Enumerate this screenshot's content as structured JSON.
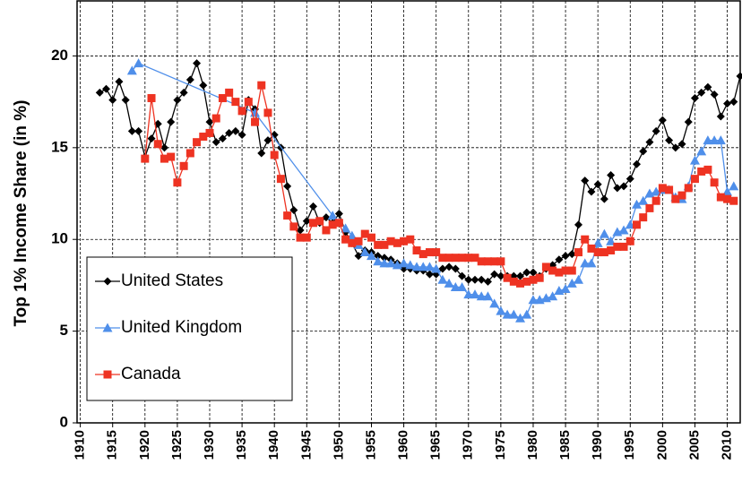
{
  "chart_data": {
    "type": "line",
    "ylabel": "Top 1% Income Share (in %)",
    "xlim": [
      1909.5,
      2012
    ],
    "ylim": [
      0,
      23
    ],
    "xticks": [
      1910,
      1915,
      1920,
      1925,
      1930,
      1935,
      1940,
      1945,
      1950,
      1955,
      1960,
      1965,
      1970,
      1975,
      1980,
      1985,
      1990,
      1995,
      2000,
      2005,
      2010
    ],
    "yticks": [
      0,
      5,
      10,
      15,
      20
    ],
    "grid": true,
    "legend": "lower left",
    "series": [
      {
        "name": "United States",
        "color": "#000000",
        "marker": "diamond",
        "x": [
          1913,
          1914,
          1915,
          1916,
          1917,
          1918,
          1919,
          1920,
          1921,
          1922,
          1923,
          1924,
          1925,
          1926,
          1927,
          1928,
          1929,
          1930,
          1931,
          1932,
          1933,
          1934,
          1935,
          1936,
          1937,
          1938,
          1939,
          1940,
          1941,
          1942,
          1943,
          1944,
          1945,
          1946,
          1947,
          1948,
          1949,
          1950,
          1951,
          1952,
          1953,
          1954,
          1955,
          1956,
          1957,
          1958,
          1959,
          1960,
          1961,
          1962,
          1963,
          1964,
          1965,
          1966,
          1967,
          1968,
          1969,
          1970,
          1971,
          1972,
          1973,
          1974,
          1975,
          1976,
          1977,
          1978,
          1979,
          1980,
          1981,
          1982,
          1983,
          1984,
          1985,
          1986,
          1987,
          1988,
          1989,
          1990,
          1991,
          1992,
          1993,
          1994,
          1995,
          1996,
          1997,
          1998,
          1999,
          2000,
          2001,
          2002,
          2003,
          2004,
          2005,
          2006,
          2007,
          2008,
          2009,
          2010,
          2011,
          2012
        ],
        "values": [
          18.0,
          18.2,
          17.6,
          18.6,
          17.6,
          15.9,
          15.9,
          14.5,
          15.5,
          16.3,
          15.0,
          16.4,
          17.6,
          18.0,
          18.7,
          19.6,
          18.4,
          16.4,
          15.3,
          15.5,
          15.8,
          15.9,
          15.7,
          17.6,
          17.1,
          14.7,
          15.4,
          15.7,
          15.0,
          12.9,
          11.6,
          10.5,
          11.0,
          11.8,
          10.9,
          11.2,
          10.9,
          11.4,
          10.4,
          9.8,
          9.1,
          9.4,
          9.3,
          9.1,
          9.0,
          8.9,
          8.7,
          8.4,
          8.4,
          8.3,
          8.3,
          8.1,
          8.1,
          8.4,
          8.5,
          8.4,
          8.0,
          7.8,
          7.8,
          7.8,
          7.7,
          8.1,
          8.0,
          8.0,
          8.0,
          8.0,
          8.2,
          8.2,
          8.0,
          8.4,
          8.6,
          8.9,
          9.1,
          9.2,
          10.8,
          13.2,
          12.6,
          13.0,
          12.2,
          13.5,
          12.8,
          12.9,
          13.3,
          14.1,
          14.8,
          15.3,
          15.9,
          16.5,
          15.4,
          15.0,
          15.2,
          16.4,
          17.7,
          18.0,
          18.3,
          17.9,
          16.7,
          17.4,
          17.5,
          18.9
        ]
      },
      {
        "name": "United Kingdom",
        "color": "#4f8fea",
        "marker": "triangle",
        "x": [
          1918,
          1919,
          1937,
          1949,
          1951,
          1952,
          1953,
          1954,
          1955,
          1956,
          1957,
          1958,
          1959,
          1960,
          1961,
          1962,
          1963,
          1964,
          1965,
          1966,
          1967,
          1968,
          1969,
          1970,
          1971,
          1972,
          1973,
          1974,
          1975,
          1976,
          1977,
          1978,
          1979,
          1980,
          1981,
          1982,
          1983,
          1984,
          1985,
          1986,
          1987,
          1988,
          1989,
          1990,
          1991,
          1992,
          1993,
          1994,
          1995,
          1996,
          1997,
          1998,
          1999,
          2000,
          2001,
          2002,
          2003,
          2004,
          2005,
          2006,
          2007,
          2008,
          2009,
          2010,
          2011
        ],
        "values": [
          19.2,
          19.6,
          16.9,
          11.3,
          10.6,
          10.2,
          9.7,
          9.3,
          9.1,
          8.8,
          8.7,
          8.7,
          8.6,
          8.7,
          8.6,
          8.5,
          8.5,
          8.5,
          8.4,
          7.8,
          7.6,
          7.4,
          7.4,
          7.0,
          7.0,
          6.9,
          6.9,
          6.5,
          6.1,
          5.9,
          5.9,
          5.7,
          5.9,
          6.7,
          6.7,
          6.8,
          6.9,
          7.2,
          7.3,
          7.6,
          7.8,
          8.7,
          8.7,
          9.8,
          10.3,
          9.9,
          10.4,
          10.5,
          10.8,
          11.9,
          12.1,
          12.5,
          12.6,
          12.7,
          12.7,
          12.3,
          12.2,
          12.9,
          14.3,
          14.8,
          15.4,
          15.4,
          15.4,
          12.6,
          12.9
        ]
      },
      {
        "name": "Canada",
        "color": "#ee3322",
        "marker": "square",
        "x": [
          1920,
          1921,
          1922,
          1923,
          1924,
          1925,
          1926,
          1927,
          1928,
          1929,
          1930,
          1931,
          1932,
          1933,
          1934,
          1935,
          1936,
          1937,
          1938,
          1939,
          1940,
          1941,
          1942,
          1943,
          1944,
          1945,
          1946,
          1947,
          1948,
          1949,
          1950,
          1951,
          1952,
          1953,
          1954,
          1955,
          1956,
          1957,
          1958,
          1959,
          1960,
          1961,
          1962,
          1963,
          1964,
          1965,
          1966,
          1967,
          1968,
          1969,
          1970,
          1971,
          1972,
          1973,
          1974,
          1975,
          1976,
          1977,
          1978,
          1979,
          1980,
          1981,
          1982,
          1983,
          1984,
          1985,
          1986,
          1987,
          1988,
          1989,
          1990,
          1991,
          1992,
          1993,
          1994,
          1995,
          1996,
          1997,
          1998,
          1999,
          2000,
          2001,
          2002,
          2003,
          2004,
          2005,
          2006,
          2007,
          2008,
          2009,
          2010,
          2011
        ],
        "values": [
          14.4,
          17.7,
          15.2,
          14.4,
          14.5,
          13.1,
          14.0,
          14.7,
          15.3,
          15.6,
          15.8,
          16.6,
          17.7,
          18.0,
          17.5,
          17.0,
          17.5,
          16.4,
          18.4,
          16.9,
          14.6,
          13.3,
          11.3,
          10.7,
          10.1,
          10.1,
          10.9,
          11.0,
          10.5,
          10.8,
          10.9,
          10.0,
          9.8,
          9.9,
          10.3,
          10.1,
          9.7,
          9.7,
          9.9,
          9.8,
          9.9,
          10.0,
          9.4,
          9.2,
          9.3,
          9.3,
          9.0,
          9.0,
          9.0,
          9.0,
          9.0,
          9.0,
          8.8,
          8.8,
          8.8,
          8.8,
          7.9,
          7.7,
          7.6,
          7.7,
          7.8,
          7.9,
          8.5,
          8.3,
          8.2,
          8.3,
          8.3,
          9.3,
          10.0,
          9.5,
          9.3,
          9.3,
          9.4,
          9.6,
          9.6,
          9.9,
          10.8,
          11.2,
          11.7,
          12.1,
          12.8,
          12.7,
          12.2,
          12.4,
          12.8,
          13.3,
          13.7,
          13.8,
          13.1,
          12.3,
          12.2,
          12.1
        ]
      }
    ]
  }
}
